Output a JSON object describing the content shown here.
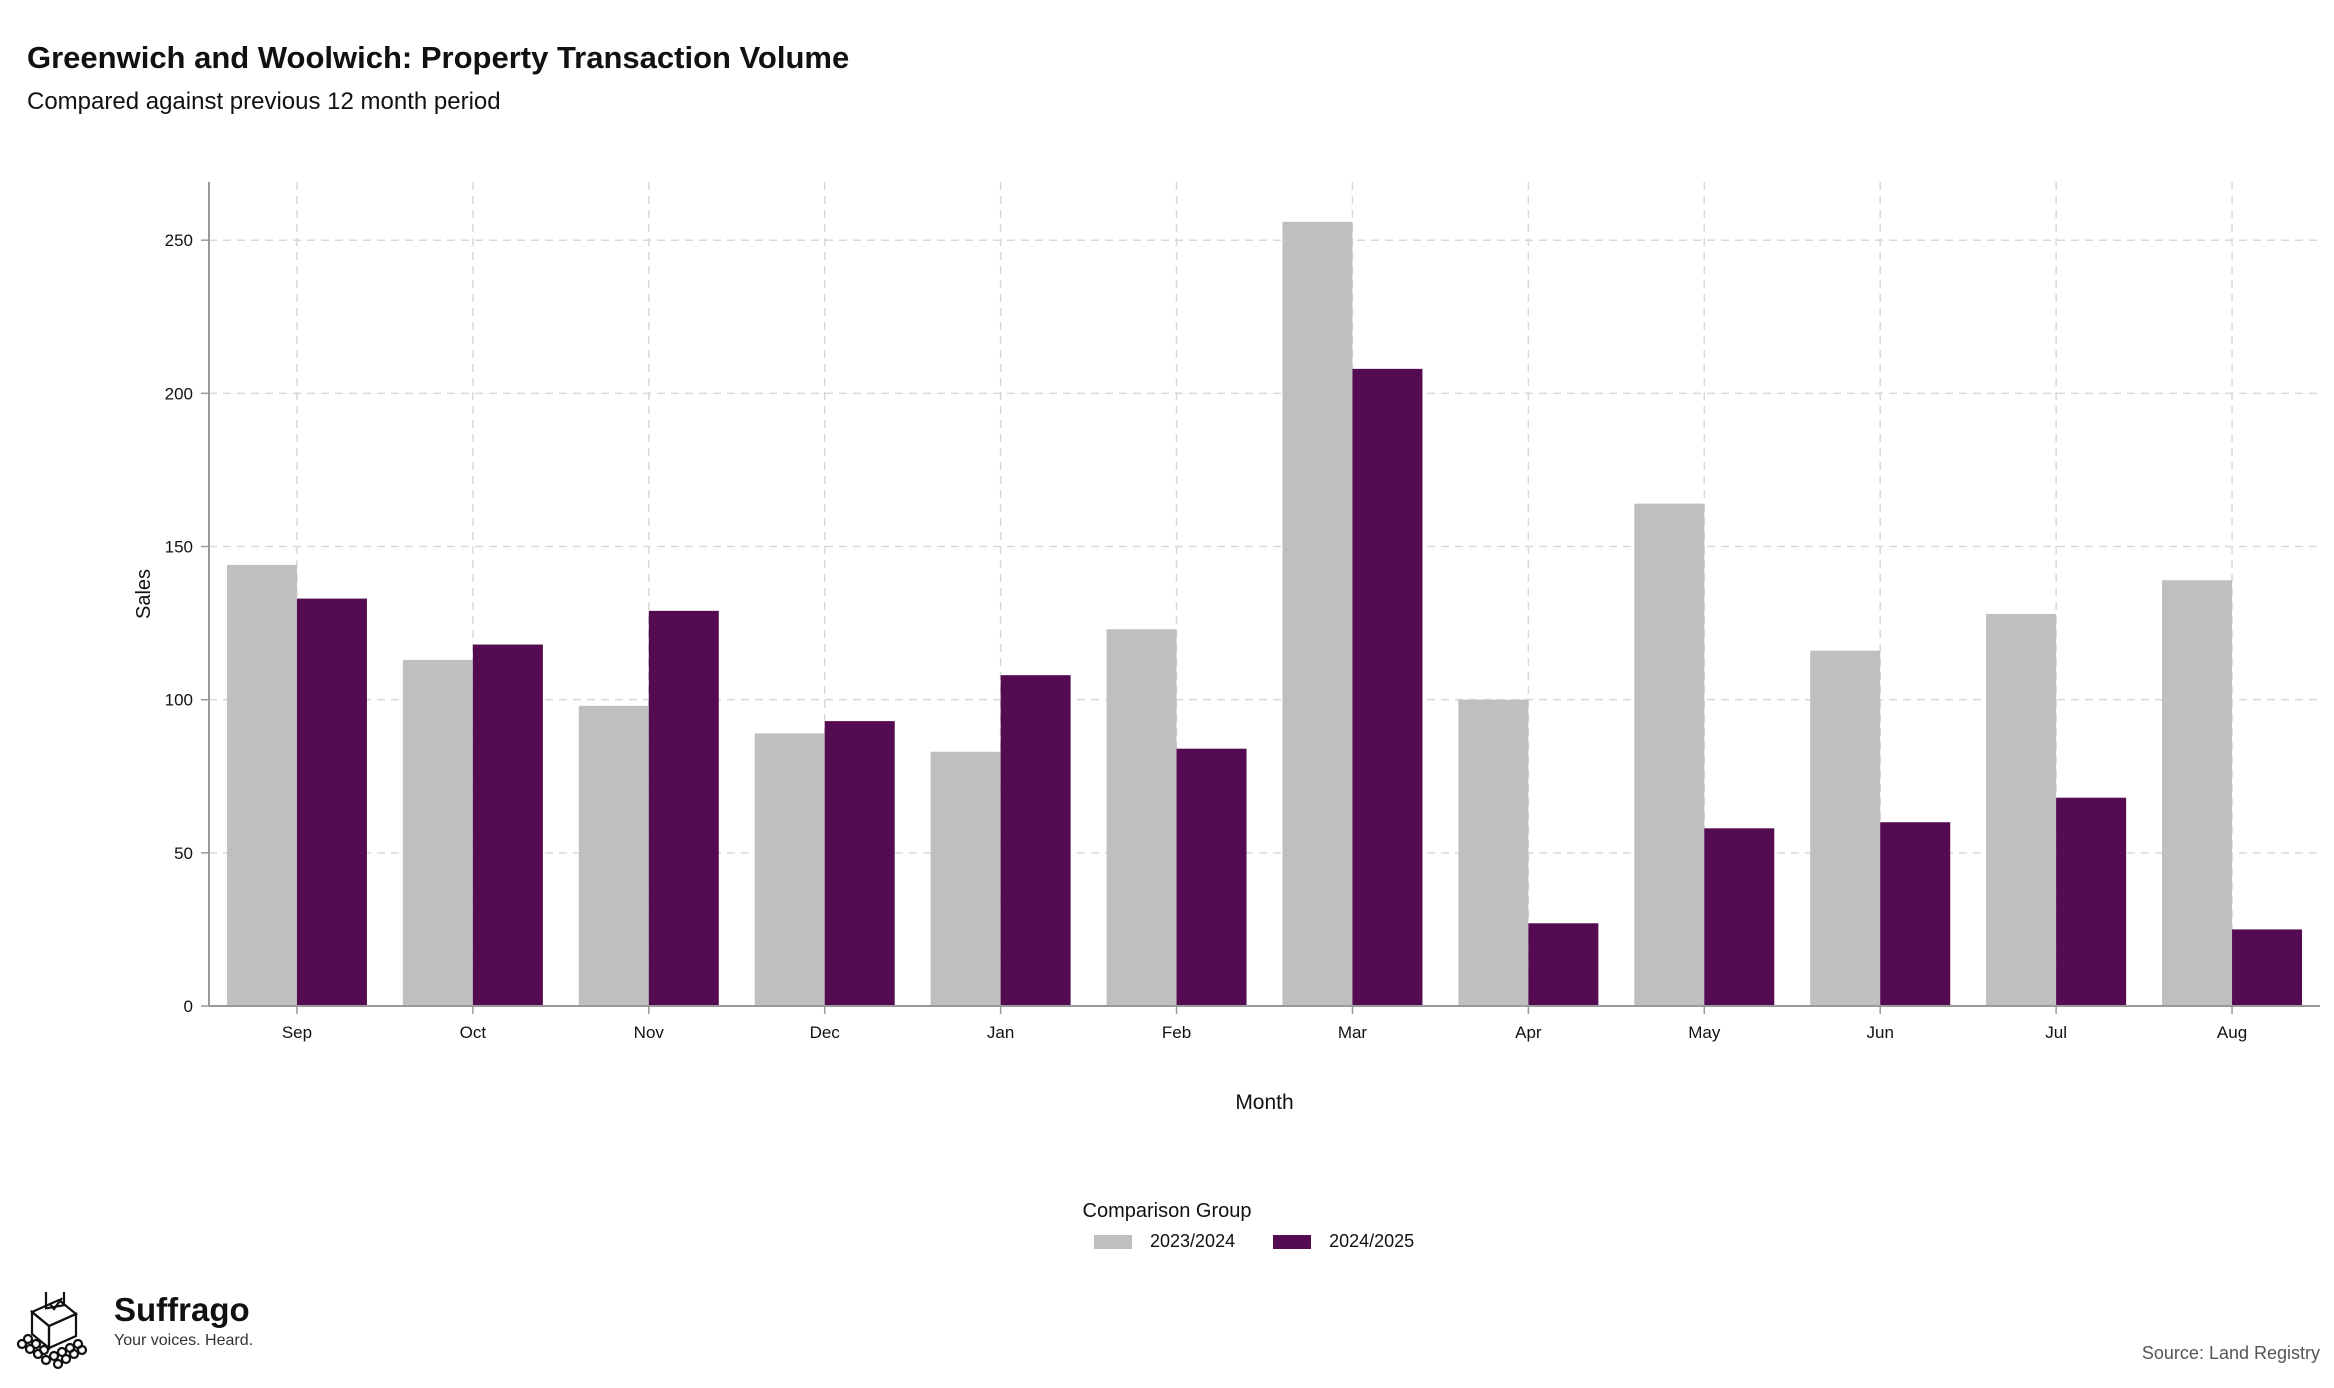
{
  "title": "Greenwich and Woolwich: Property Transaction Volume",
  "subtitle": "Compared against previous 12 month period",
  "legend": {
    "title": "Comparison Group"
  },
  "brand": {
    "name": "Suffrago",
    "tagline": "Your voices. Heard."
  },
  "source": "Source: Land Registry",
  "colors": {
    "series1": "#bfbfbf",
    "series2": "#540b51",
    "grid": "#d9d9d9"
  },
  "chart_data": {
    "type": "bar",
    "xlabel": "Month",
    "ylabel": "Sales",
    "categories": [
      "Sep",
      "Oct",
      "Nov",
      "Dec",
      "Jan",
      "Feb",
      "Mar",
      "Apr",
      "May",
      "Jun",
      "Jul",
      "Aug"
    ],
    "series": [
      {
        "name": "2023/2024",
        "values": [
          144,
          113,
          98,
          89,
          83,
          123,
          256,
          100,
          164,
          116,
          128,
          139
        ]
      },
      {
        "name": "2024/2025",
        "values": [
          133,
          118,
          129,
          93,
          108,
          84,
          208,
          27,
          58,
          60,
          68,
          25
        ]
      }
    ],
    "ylim": [
      0,
      269
    ],
    "yticks": [
      0,
      50,
      100,
      150,
      200,
      250
    ],
    "grid": true,
    "legend_position": "bottom"
  }
}
